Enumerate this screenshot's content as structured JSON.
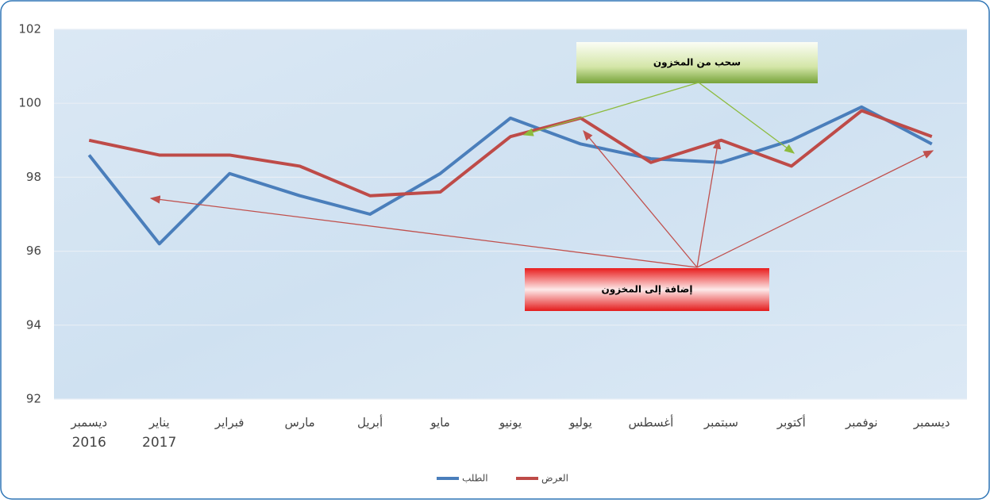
{
  "chart_data": {
    "type": "line",
    "categories": [
      "ديسمبر",
      "يناير",
      "فبراير",
      "مارس",
      "أبريل",
      "مايو",
      "يونيو",
      "يوليو",
      "أغسطس",
      "سبتمبر",
      "أكتوبر",
      "نوفمبر",
      "ديسمبر"
    ],
    "years": [
      "2016",
      "2017",
      null,
      null,
      null,
      null,
      null,
      null,
      null,
      null,
      null,
      null,
      null
    ],
    "series": [
      {
        "name": "الطلب",
        "color": "#4a7ebb",
        "values": [
          98.6,
          96.2,
          98.1,
          97.5,
          97.0,
          98.1,
          99.6,
          98.9,
          98.5,
          98.4,
          99.0,
          99.9,
          98.9
        ]
      },
      {
        "name": "العرض",
        "color": "#be4b48",
        "values": [
          99.0,
          98.6,
          98.6,
          98.3,
          97.5,
          97.6,
          99.1,
          99.6,
          98.4,
          99.0,
          98.3,
          99.8,
          99.1
        ]
      }
    ],
    "ylim": [
      92,
      102
    ],
    "yticks": [
      92,
      94,
      96,
      98,
      100,
      102
    ],
    "grid": true,
    "annotations": [
      "سحب من المخزون",
      "إضافة إلى المخزون"
    ],
    "legend": "bottom"
  }
}
